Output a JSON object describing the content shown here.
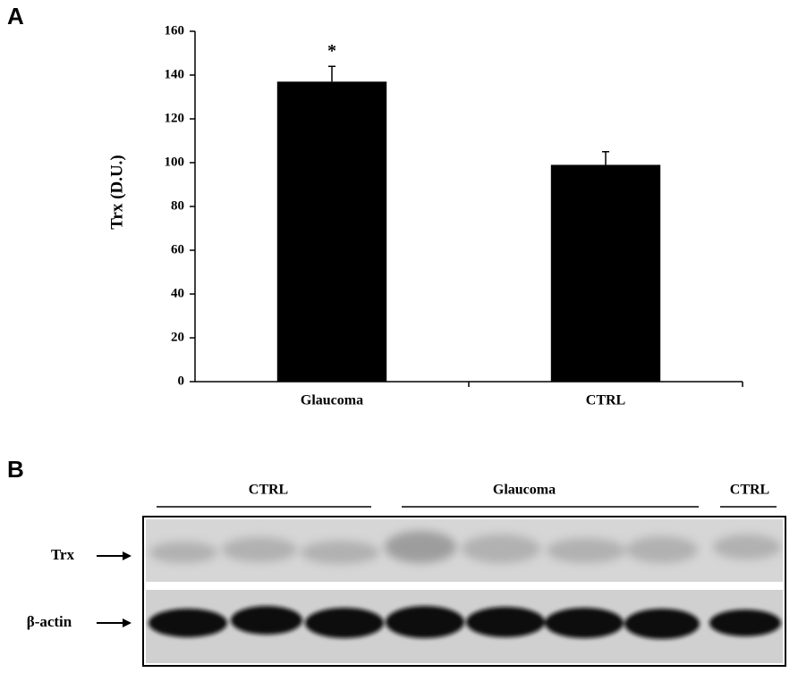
{
  "panels": [
    "A",
    "B"
  ],
  "chart_data": {
    "type": "bar",
    "y_label": "Trx  (D.U.)",
    "categories": [
      "Glaucoma",
      "CTRL"
    ],
    "values": [
      137,
      99
    ],
    "errors": [
      7,
      6
    ],
    "color": "#000000",
    "ylim": [
      0,
      160
    ],
    "yticks": [
      0,
      20,
      40,
      60,
      80,
      100,
      120,
      140,
      160
    ],
    "annotations": [
      {
        "text": "*",
        "category": "Glaucoma"
      }
    ]
  },
  "blot": {
    "groups": [
      "CTRL",
      "Glaucoma",
      "CTRL"
    ],
    "rows": [
      "Trx",
      "β-actin"
    ]
  }
}
